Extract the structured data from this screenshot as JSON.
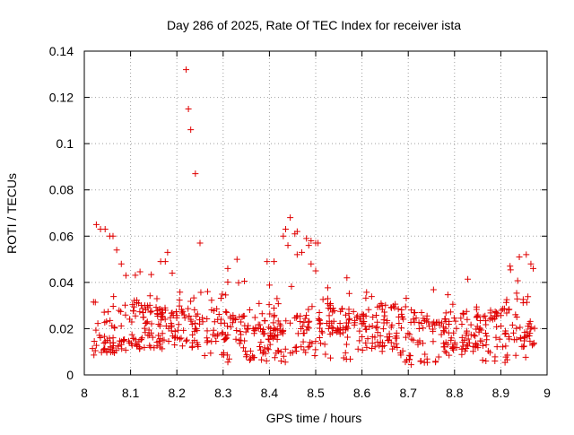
{
  "chart_data": {
    "type": "scatter",
    "title": "Day 286 of 2025, Rate Of TEC Index for receiver ista",
    "xlabel": "GPS time / hours",
    "ylabel": "ROTI / TECUs",
    "xlim": [
      8,
      9
    ],
    "ylim": [
      0,
      0.14
    ],
    "xticks": [
      8,
      8.1,
      8.2,
      8.3,
      8.4,
      8.5,
      8.6,
      8.7,
      8.8,
      8.9,
      9
    ],
    "xtick_labels": [
      "8",
      "8.1",
      "8.2",
      "8.3",
      "8.4",
      "8.5",
      "8.6",
      "8.7",
      "8.8",
      "8.9",
      "9"
    ],
    "yticks": [
      0,
      0.02,
      0.04,
      0.06,
      0.08,
      0.1,
      0.12,
      0.14
    ],
    "ytick_labels": [
      "0",
      "0.02",
      "0.04",
      "0.06",
      "0.08",
      "0.1",
      "0.12",
      "0.14"
    ],
    "grid": true,
    "marker": "plus",
    "color": "#e00000",
    "series": [
      {
        "name": "ROTI",
        "points": [
          [
            8.22,
            0.132
          ],
          [
            8.225,
            0.115
          ],
          [
            8.23,
            0.106
          ],
          [
            8.24,
            0.087
          ],
          [
            8.25,
            0.057
          ],
          [
            8.026,
            0.065
          ],
          [
            8.035,
            0.063
          ],
          [
            8.045,
            0.063
          ],
          [
            8.055,
            0.06
          ],
          [
            8.062,
            0.06
          ],
          [
            8.07,
            0.054
          ],
          [
            8.08,
            0.048
          ],
          [
            8.09,
            0.043
          ],
          [
            8.18,
            0.053
          ],
          [
            8.165,
            0.049
          ],
          [
            8.175,
            0.049
          ],
          [
            8.19,
            0.044
          ],
          [
            8.43,
            0.06
          ],
          [
            8.435,
            0.063
          ],
          [
            8.445,
            0.068
          ],
          [
            8.455,
            0.061
          ],
          [
            8.46,
            0.062
          ],
          [
            8.44,
            0.056
          ],
          [
            8.47,
            0.053
          ],
          [
            8.48,
            0.059
          ],
          [
            8.485,
            0.056
          ],
          [
            8.49,
            0.058
          ],
          [
            8.5,
            0.057
          ],
          [
            8.505,
            0.057
          ],
          [
            8.46,
            0.052
          ],
          [
            8.49,
            0.048
          ],
          [
            8.5,
            0.045
          ],
          [
            8.94,
            0.051
          ],
          [
            8.955,
            0.052
          ],
          [
            8.965,
            0.048
          ],
          [
            8.92,
            0.047
          ],
          [
            8.97,
            0.046
          ],
          [
            8.33,
            0.05
          ],
          [
            8.395,
            0.049
          ],
          [
            8.41,
            0.049
          ],
          [
            8.31,
            0.046
          ]
        ]
      }
    ],
    "band": {
      "x_start": 8.015,
      "x_end": 8.975,
      "count": 820,
      "center": 0.018,
      "spread": 0.012,
      "min": 0.004,
      "max": 0.048
    }
  }
}
